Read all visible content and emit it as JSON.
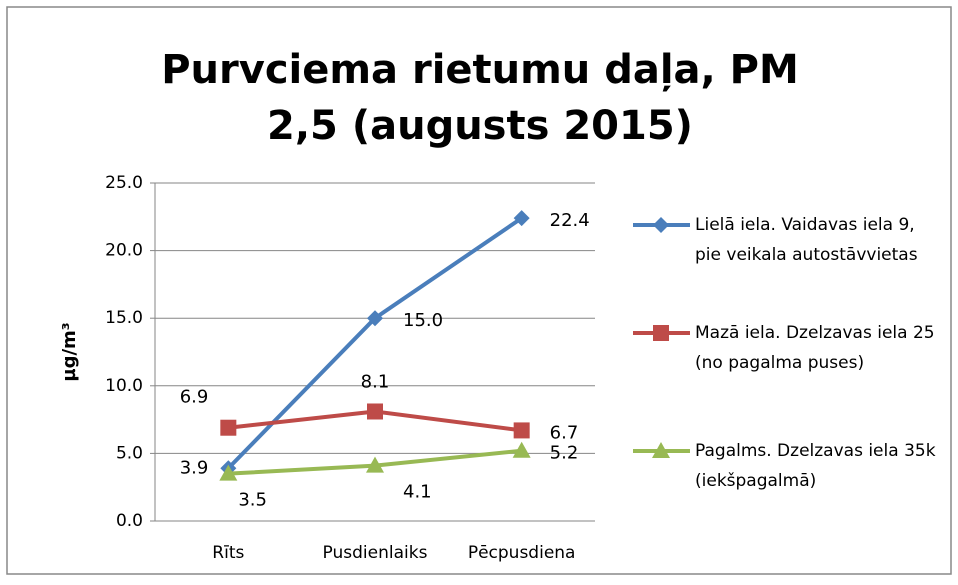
{
  "chart_data": {
    "type": "line",
    "title": "Purvciema rietumu daļa, PM 2,5 (augusts 2015)",
    "ylabel": "µg/m³",
    "categories": [
      "Rīts",
      "Pusdienlaiks",
      "Pēcpusdiena"
    ],
    "series": [
      {
        "name": "Lielā iela. Vaidavas iela 9, pie veikala autostāvvietas",
        "color": "#4a7ebb",
        "marker": "diamond",
        "values": [
          3.9,
          15.0,
          22.4
        ],
        "value_labels": [
          "3.9",
          "15.0",
          "22.4"
        ]
      },
      {
        "name": "Mazā iela. Dzelzavas iela 25 (no pagalma puses)",
        "color": "#be4b48",
        "marker": "square",
        "values": [
          6.9,
          8.1,
          6.7
        ],
        "value_labels": [
          "6.9",
          "8.1",
          "6.7"
        ]
      },
      {
        "name": "Pagalms. Dzelzavas iela 35k (iekšpagalmā)",
        "color": "#98b954",
        "marker": "triangle",
        "values": [
          3.5,
          4.1,
          5.2
        ],
        "value_labels": [
          "3.5",
          "4.1",
          "5.2"
        ]
      }
    ],
    "ylim": [
      0,
      25
    ],
    "yticks": [
      {
        "value": 0,
        "label": "0.0"
      },
      {
        "value": 5,
        "label": "5.0"
      },
      {
        "value": 10,
        "label": "10.0"
      },
      {
        "value": 15,
        "label": "15.0"
      },
      {
        "value": 20,
        "label": "20.0"
      },
      {
        "value": 25,
        "label": "25.0"
      }
    ],
    "grid": true,
    "legend": "right"
  }
}
